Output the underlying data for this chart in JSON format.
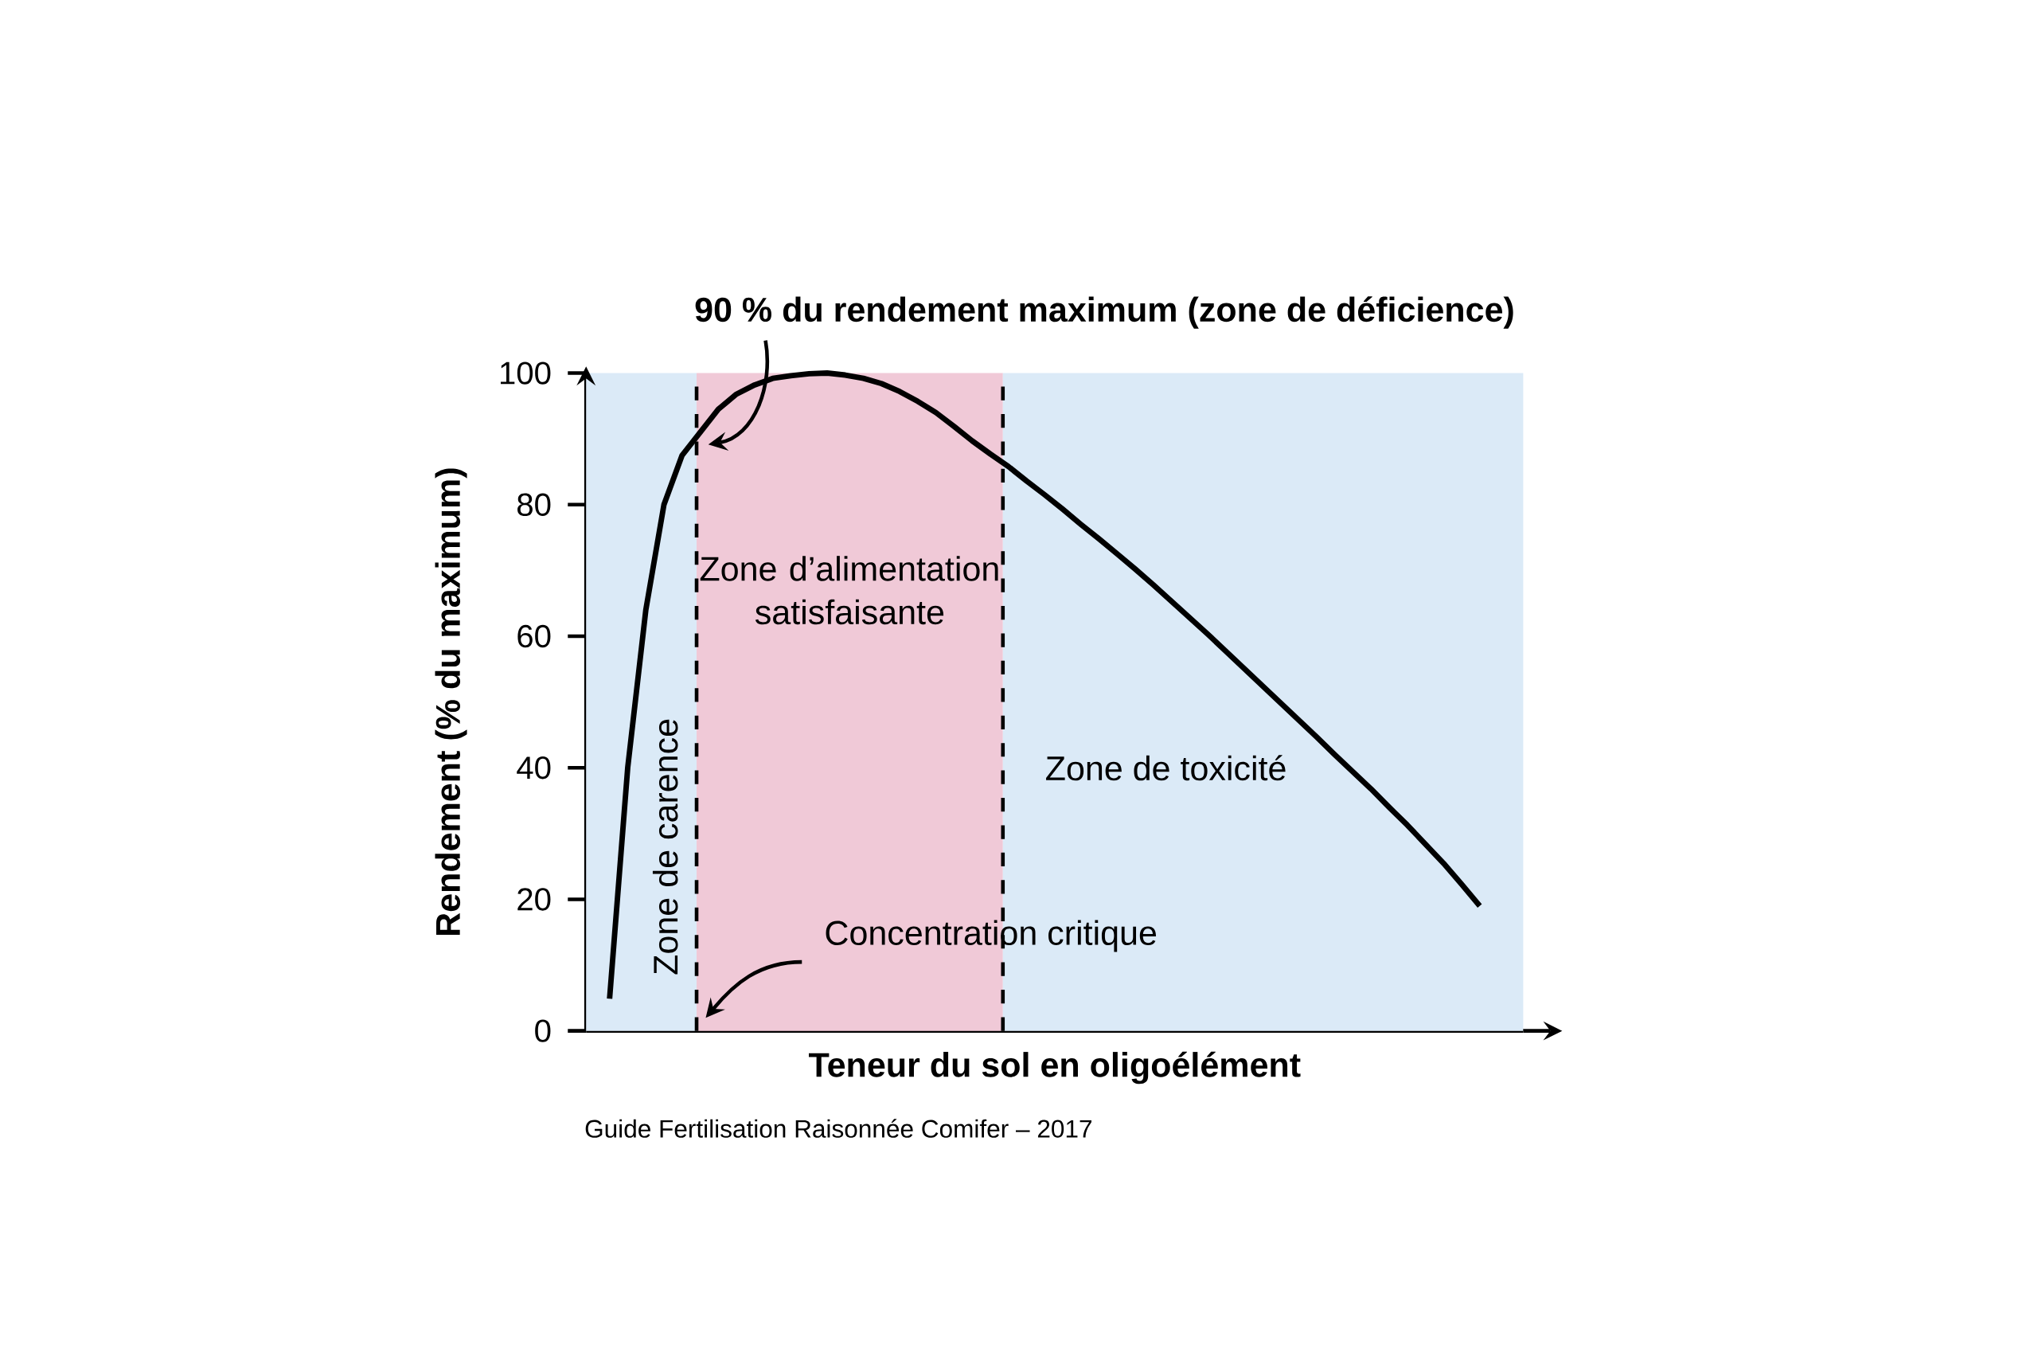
{
  "chart_data": {
    "type": "line",
    "xlabel": "Teneur du sol en oligoélément",
    "ylabel": "Rendement (% du maximum)",
    "categories": [
      null,
      null,
      null,
      null,
      null,
      null,
      null,
      null,
      null,
      null,
      null,
      null,
      null,
      null,
      null,
      null,
      null,
      null,
      null,
      null,
      null,
      null,
      null,
      null,
      null,
      null,
      null,
      null,
      null,
      null,
      null,
      null,
      null,
      null,
      null,
      null,
      null,
      null,
      null,
      null,
      null,
      null,
      null,
      null,
      null,
      null,
      null,
      null,
      null
    ],
    "series": [
      {
        "color": "#000000",
        "values": [
          4.9,
          40,
          64,
          80,
          87.5,
          91,
          94.5,
          96.8,
          98.2,
          99.2,
          99.6,
          99.9,
          100,
          99.7,
          99.2,
          98.4,
          97.2,
          95.7,
          94,
          91.9,
          89.7,
          87.7,
          85.8,
          83.6,
          81.5,
          79.3,
          77,
          74.8,
          72.5,
          70.2,
          67.8,
          65.3,
          62.8,
          60.3,
          57.7,
          55.1,
          52.5,
          49.9,
          47.3,
          44.7,
          42,
          39.4,
          36.8,
          34,
          31.3,
          28.4,
          25.5,
          22.3,
          19
        ]
      }
    ],
    "ylim": [
      0,
      100
    ],
    "yticks": [
      0,
      20,
      40,
      60,
      80,
      100
    ],
    "grid": false,
    "marker": "none",
    "line_style": "solid",
    "annotations": [
      "90 % du rendement maximum (zone de déficience)",
      "Concentration critique",
      "Guide Fertilisation Raisonnée Comifer – 2017",
      "Zone de carence",
      "Zone d’alimentation satisfaisante",
      "Zone de toxicité"
    ]
  }
}
